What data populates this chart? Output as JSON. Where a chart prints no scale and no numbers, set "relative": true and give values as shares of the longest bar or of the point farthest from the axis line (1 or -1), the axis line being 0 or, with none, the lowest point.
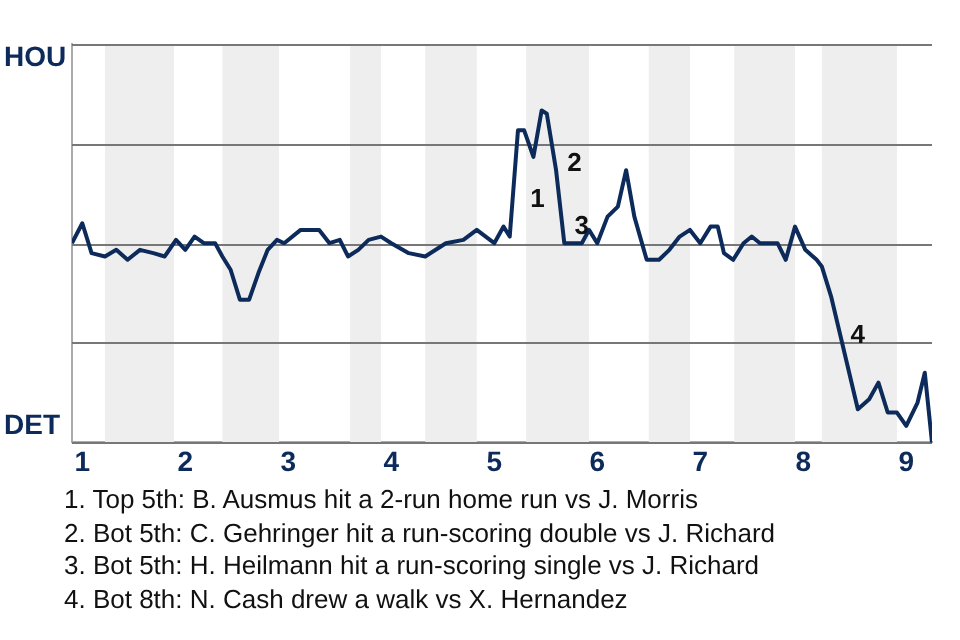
{
  "chart_data": {
    "type": "line",
    "color": "#0d2b5a",
    "relative": true,
    "x": [
      0.9,
      1,
      1.09,
      1.22,
      1.33,
      1.44,
      1.56,
      1.69,
      1.8,
      1.91,
      2,
      2.09,
      2.18,
      2.29,
      2.36,
      2.44,
      2.53,
      2.62,
      2.71,
      2.8,
      2.89,
      2.96,
      3.12,
      3.3,
      3.4,
      3.5,
      3.58,
      3.68,
      3.78,
      3.9,
      4,
      4.17,
      4.33,
      4.53,
      4.7,
      4.83,
      5,
      5.09,
      5.15,
      5.23,
      5.29,
      5.38,
      5.46,
      5.51,
      5.6,
      5.68,
      5.85,
      5.92,
      6,
      6.1,
      6.2,
      6.28,
      6.36,
      6.48,
      6.6,
      6.7,
      6.8,
      6.9,
      7,
      7.1,
      7.17,
      7.23,
      7.32,
      7.42,
      7.5,
      7.58,
      7.75,
      7.83,
      7.92,
      8.02,
      8.13,
      8.18,
      8.27,
      8.4,
      8.53,
      8.64,
      8.73,
      8.82,
      8.91,
      9,
      9.11,
      9.18,
      9.25
    ],
    "values": [
      0.6,
      0.66,
      0.57,
      0.56,
      0.58,
      0.55,
      0.58,
      0.57,
      0.56,
      0.61,
      0.58,
      0.62,
      0.6,
      0.6,
      0.56,
      0.52,
      0.43,
      0.43,
      0.51,
      0.58,
      0.61,
      0.6,
      0.64,
      0.64,
      0.6,
      0.61,
      0.56,
      0.58,
      0.61,
      0.62,
      0.6,
      0.57,
      0.56,
      0.6,
      0.61,
      0.64,
      0.6,
      0.65,
      0.62,
      0.94,
      0.94,
      0.86,
      1,
      0.99,
      0.82,
      0.6,
      0.6,
      0.64,
      0.6,
      0.68,
      0.71,
      0.82,
      0.68,
      0.55,
      0.55,
      0.58,
      0.62,
      0.64,
      0.6,
      0.65,
      0.65,
      0.57,
      0.55,
      0.6,
      0.62,
      0.6,
      0.6,
      0.55,
      0.65,
      0.58,
      0.55,
      0.53,
      0.44,
      0.27,
      0.1,
      0.13,
      0.18,
      0.09,
      0.09,
      0.05,
      0.12,
      0.21,
      0
    ],
    "xlim": [
      0.9,
      9.25
    ],
    "xticks": [
      1,
      2,
      3,
      4,
      5,
      6,
      7,
      8,
      9
    ],
    "grid": "y",
    "marker": "none",
    "line_style": "solid",
    "legend": false,
    "bands": [
      {
        "axis": "x",
        "from": 1.22,
        "to": 1.89,
        "color": "#eeeeee"
      },
      {
        "axis": "x",
        "from": 2.36,
        "to": 2.91,
        "color": "#eeeeee"
      },
      {
        "axis": "x",
        "from": 3.6,
        "to": 3.9,
        "color": "#eeeeee"
      },
      {
        "axis": "x",
        "from": 4.33,
        "to": 4.83,
        "color": "#eeeeee"
      },
      {
        "axis": "x",
        "from": 5.31,
        "to": 5.92,
        "color": "#eeeeee"
      },
      {
        "axis": "x",
        "from": 6.5,
        "to": 6.9,
        "color": "#eeeeee"
      },
      {
        "axis": "x",
        "from": 7.33,
        "to": 7.92,
        "color": "#eeeeee"
      },
      {
        "axis": "x",
        "from": 8.18,
        "to": 8.91,
        "color": "#eeeeee"
      }
    ],
    "annotations": [
      "HOU",
      "DET",
      {
        "text": "1",
        "x": 5.29,
        "y": 0.73
      },
      {
        "text": "2",
        "x": 5.65,
        "y": 0.84
      },
      {
        "text": "3",
        "x": 5.72,
        "y": 0.65
      },
      {
        "text": "4",
        "x": 8.4,
        "y": 0.32
      },
      "1. Top 5th: B. Ausmus hit a 2-run home run vs J. Morris",
      "2. Bot 5th: C. Gehringer hit a run-scoring double vs J. Richard",
      "3. Bot 5th: H. Heilmann hit a run-scoring single vs J. Richard",
      "4. Bot 8th: N. Cash drew a walk vs X. Hernandez"
    ]
  }
}
